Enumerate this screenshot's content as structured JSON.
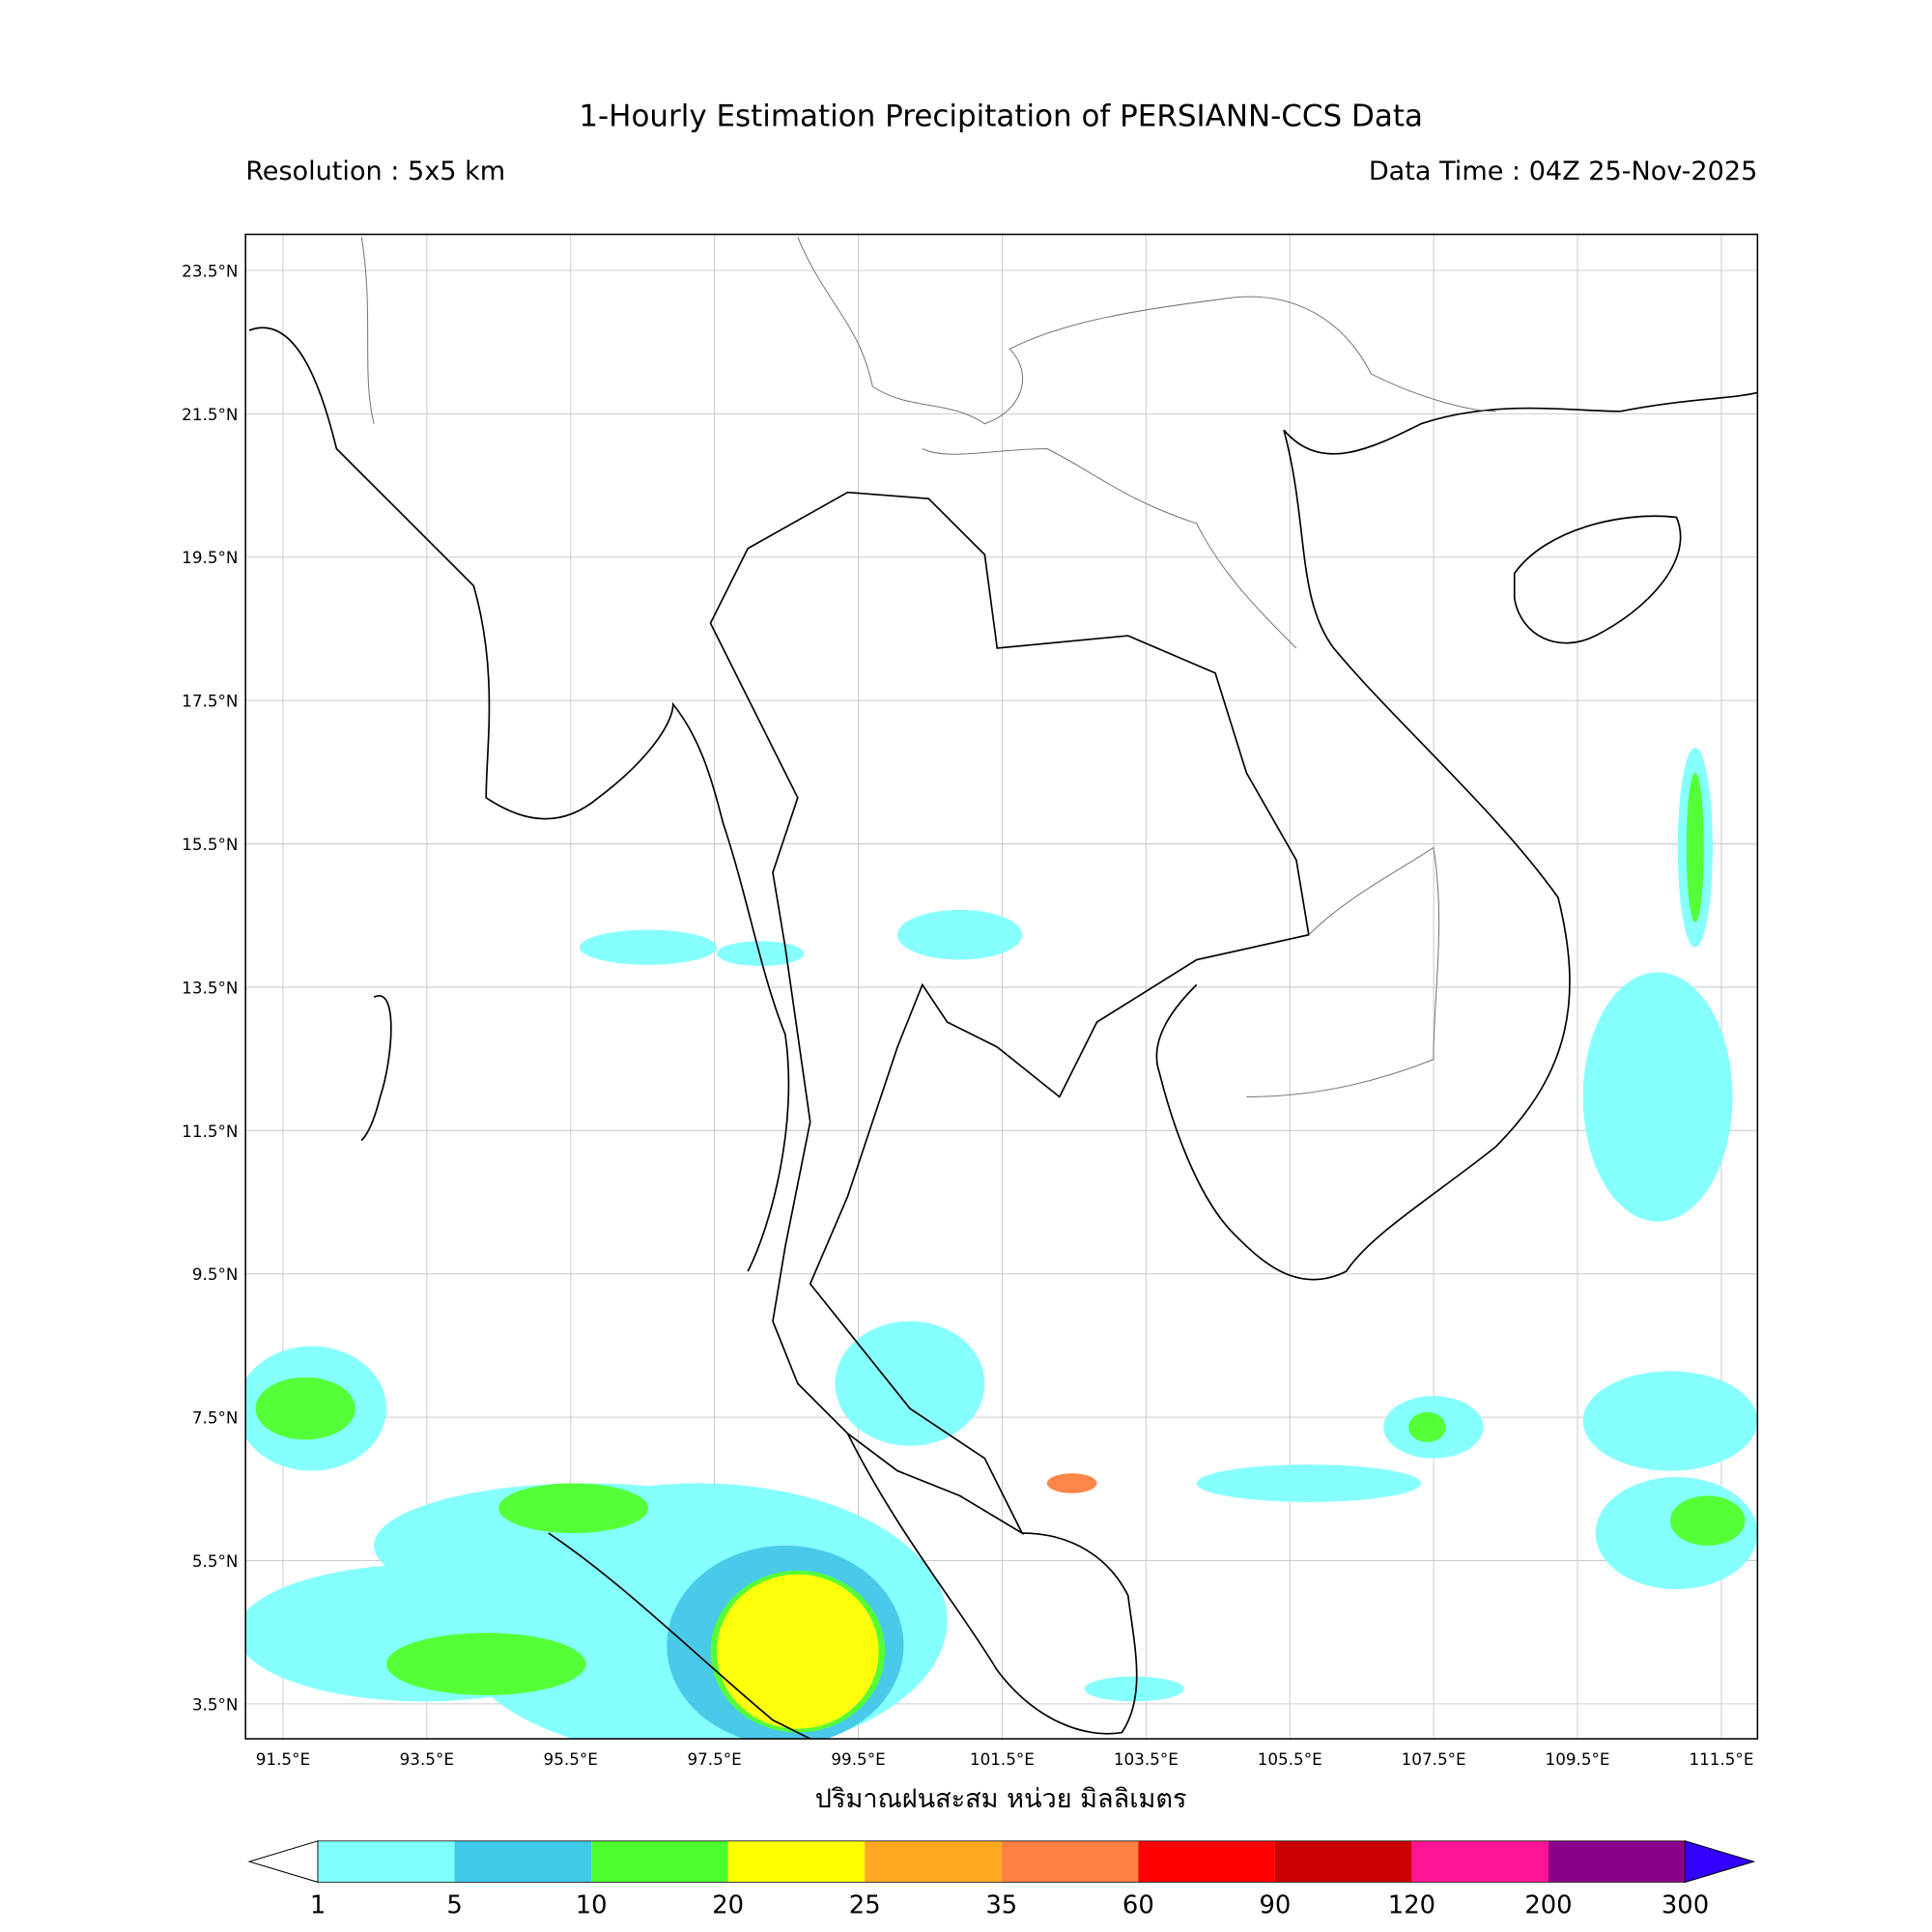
{
  "header": {
    "title": "1-Hourly Estimation Precipitation of PERSIANN-CCS Data",
    "resolution": "Resolution : 5x5 km",
    "data_time": "Data Time : 04Z 25-Nov-2025"
  },
  "map": {
    "lat_labels": [
      "23.5°N",
      "21.5°N",
      "19.5°N",
      "17.5°N",
      "15.5°N",
      "13.5°N",
      "11.5°N",
      "9.5°N",
      "7.5°N",
      "5.5°N",
      "3.5°N"
    ],
    "lon_labels": [
      "91.5°E",
      "93.5°E",
      "95.5°E",
      "97.5°E",
      "99.5°E",
      "101.5°E",
      "103.5°E",
      "105.5°E",
      "107.5°E",
      "109.5°E",
      "111.5°E"
    ],
    "x_label": "ปริมาณฝนสะสม หน่วย มิลลิเมตร"
  },
  "colorbar": {
    "levels": [
      1,
      5,
      10,
      20,
      25,
      35,
      60,
      90,
      120,
      200,
      300
    ],
    "colors": [
      "#80ffff",
      "#40c8e8",
      "#4cff2e",
      "#ffff00",
      "#ffa820",
      "#ff8040",
      "#ff0000",
      "#cc0000",
      "#ff1493",
      "#8b008b"
    ],
    "under_color": "#ffffff",
    "over_color": "#3300ff"
  }
}
